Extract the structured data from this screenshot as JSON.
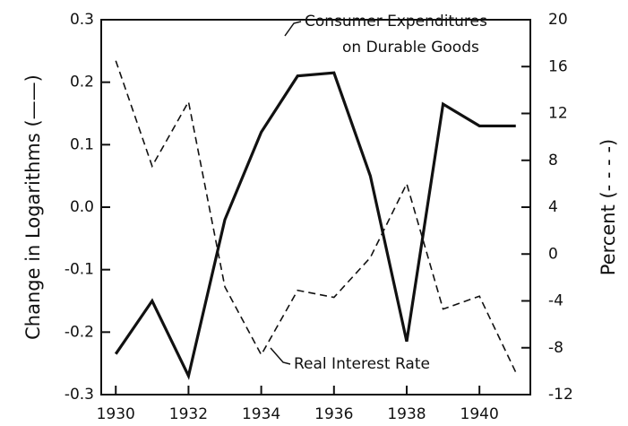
{
  "chart_data": {
    "type": "line",
    "ylabel": "Change in Logarithms (——)",
    "y2label": "Percent (- - - -)",
    "annotations": [
      "Consumer Expenditures",
      "on Durable Goods",
      "Real Interest Rate"
    ],
    "x": [
      1930,
      1931,
      1932,
      1933,
      1934,
      1935,
      1936,
      1937,
      1938,
      1939,
      1940,
      1941
    ],
    "xlim": [
      1929.6,
      1941.4
    ],
    "xticks": [
      1930,
      1932,
      1934,
      1936,
      1938,
      1940
    ],
    "ylim": [
      -0.3,
      0.3
    ],
    "yticks": [
      -0.3,
      -0.2,
      -0.1,
      {
        "value": 0,
        "label": "0.0"
      },
      0.1,
      0.2,
      0.3
    ],
    "y2lim": [
      -12,
      20
    ],
    "y2ticks": [
      -12,
      -8,
      -4,
      0,
      4,
      8,
      12,
      16,
      20
    ],
    "series": [
      {
        "color": "#111111",
        "dash": "solid",
        "values": [
          -0.235,
          -0.15,
          -0.27,
          -0.02,
          0.12,
          0.21,
          0.215,
          0.05,
          -0.215,
          0.165,
          0.13,
          0.13
        ]
      },
      {
        "color": "#111111",
        "dash": "dashed",
        "axis": "y2",
        "values": [
          16.5,
          7.5,
          13.0,
          -2.8,
          -8.6,
          -3.1,
          -3.7,
          -0.3,
          6.0,
          -4.7,
          -3.6,
          -10.1
        ]
      }
    ]
  }
}
